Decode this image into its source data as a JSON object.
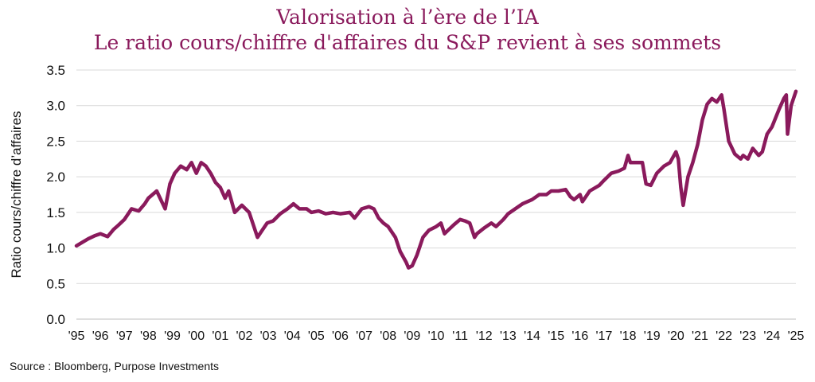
{
  "chart_data": {
    "type": "line",
    "title": "Valorisation à l’ère de l’IA",
    "subtitle": "Le ratio cours/chiffre d'affaires du S&P revient à ses sommets",
    "xlabel": "",
    "ylabel": "Ratio cours/chiffre d’affaires",
    "ylim": [
      0,
      3.5
    ],
    "yticks": [
      "0.0",
      "0.5",
      "1.0",
      "1.5",
      "2.0",
      "2.5",
      "3.0",
      "3.5"
    ],
    "xlim": [
      1995,
      2025
    ],
    "xticks": [
      "'95",
      "'96",
      "'97",
      "'98",
      "'99",
      "'00",
      "'01",
      "'02",
      "'03",
      "'04",
      "'05",
      "'06",
      "'07",
      "'08",
      "'09",
      "'10",
      "'11",
      "'12",
      "'13",
      "'14",
      "'15",
      "'16",
      "'17",
      "'18",
      "'19",
      "'20",
      "'21",
      "'22",
      "'23",
      "'24",
      "'25"
    ],
    "grid": true,
    "line_color": "#8a1a5c",
    "series": [
      {
        "name": "",
        "x": [
          1995.0,
          1995.25,
          1995.5,
          1995.75,
          1996.0,
          1996.3,
          1996.55,
          1996.75,
          1997.0,
          1997.3,
          1997.6,
          1997.85,
          1998.0,
          1998.35,
          1998.6,
          1998.7,
          1998.9,
          1999.1,
          1999.35,
          1999.6,
          1999.8,
          2000.0,
          2000.2,
          2000.4,
          2000.6,
          2000.8,
          2001.0,
          2001.2,
          2001.35,
          2001.6,
          2001.75,
          2001.9,
          2002.2,
          2002.4,
          2002.55,
          2002.75,
          2002.95,
          2003.2,
          2003.5,
          2003.8,
          2004.05,
          2004.3,
          2004.6,
          2004.8,
          2005.1,
          2005.4,
          2005.7,
          2006.0,
          2006.4,
          2006.6,
          2006.9,
          2007.2,
          2007.4,
          2007.6,
          2007.8,
          2008.0,
          2008.3,
          2008.5,
          2008.75,
          2008.85,
          2009.0,
          2009.2,
          2009.45,
          2009.7,
          2010.0,
          2010.2,
          2010.35,
          2010.5,
          2010.75,
          2011.0,
          2011.2,
          2011.4,
          2011.6,
          2011.7,
          2012.0,
          2012.3,
          2012.5,
          2012.8,
          2013.0,
          2013.3,
          2013.6,
          2014.0,
          2014.3,
          2014.6,
          2014.8,
          2015.1,
          2015.4,
          2015.6,
          2015.75,
          2016.0,
          2016.1,
          2016.4,
          2016.8,
          2017.0,
          2017.3,
          2017.6,
          2017.85,
          2018.0,
          2018.1,
          2018.3,
          2018.6,
          2018.75,
          2018.95,
          2019.2,
          2019.5,
          2019.75,
          2020.0,
          2020.1,
          2020.2,
          2020.3,
          2020.5,
          2020.7,
          2020.9,
          2021.1,
          2021.3,
          2021.5,
          2021.7,
          2021.9,
          2022.0,
          2022.2,
          2022.45,
          2022.7,
          2022.8,
          2023.0,
          2023.2,
          2023.45,
          2023.6,
          2023.8,
          2024.0,
          2024.3,
          2024.5,
          2024.6,
          2024.65,
          2024.8,
          2025.0
        ],
        "y": [
          1.03,
          1.08,
          1.13,
          1.17,
          1.2,
          1.16,
          1.26,
          1.32,
          1.4,
          1.55,
          1.52,
          1.62,
          1.7,
          1.8,
          1.62,
          1.55,
          1.9,
          2.05,
          2.15,
          2.1,
          2.2,
          2.05,
          2.2,
          2.15,
          2.05,
          1.92,
          1.85,
          1.7,
          1.8,
          1.5,
          1.55,
          1.6,
          1.5,
          1.3,
          1.15,
          1.25,
          1.35,
          1.38,
          1.48,
          1.55,
          1.62,
          1.55,
          1.55,
          1.5,
          1.52,
          1.48,
          1.5,
          1.48,
          1.5,
          1.42,
          1.55,
          1.58,
          1.55,
          1.42,
          1.35,
          1.3,
          1.15,
          0.95,
          0.8,
          0.72,
          0.75,
          0.9,
          1.15,
          1.25,
          1.3,
          1.35,
          1.2,
          1.25,
          1.33,
          1.4,
          1.38,
          1.35,
          1.15,
          1.2,
          1.28,
          1.35,
          1.3,
          1.4,
          1.48,
          1.55,
          1.62,
          1.68,
          1.75,
          1.75,
          1.8,
          1.8,
          1.82,
          1.72,
          1.68,
          1.75,
          1.65,
          1.8,
          1.88,
          1.95,
          2.05,
          2.08,
          2.12,
          2.3,
          2.2,
          2.2,
          2.2,
          1.9,
          1.88,
          2.05,
          2.15,
          2.2,
          2.35,
          2.25,
          1.85,
          1.6,
          2.0,
          2.2,
          2.45,
          2.8,
          3.02,
          3.1,
          3.05,
          3.15,
          2.95,
          2.5,
          2.32,
          2.25,
          2.3,
          2.25,
          2.4,
          2.3,
          2.35,
          2.6,
          2.7,
          2.95,
          3.1,
          3.15,
          2.6,
          3.0,
          3.2
        ]
      }
    ]
  },
  "source": "Source : Bloomberg, Purpose Investments"
}
